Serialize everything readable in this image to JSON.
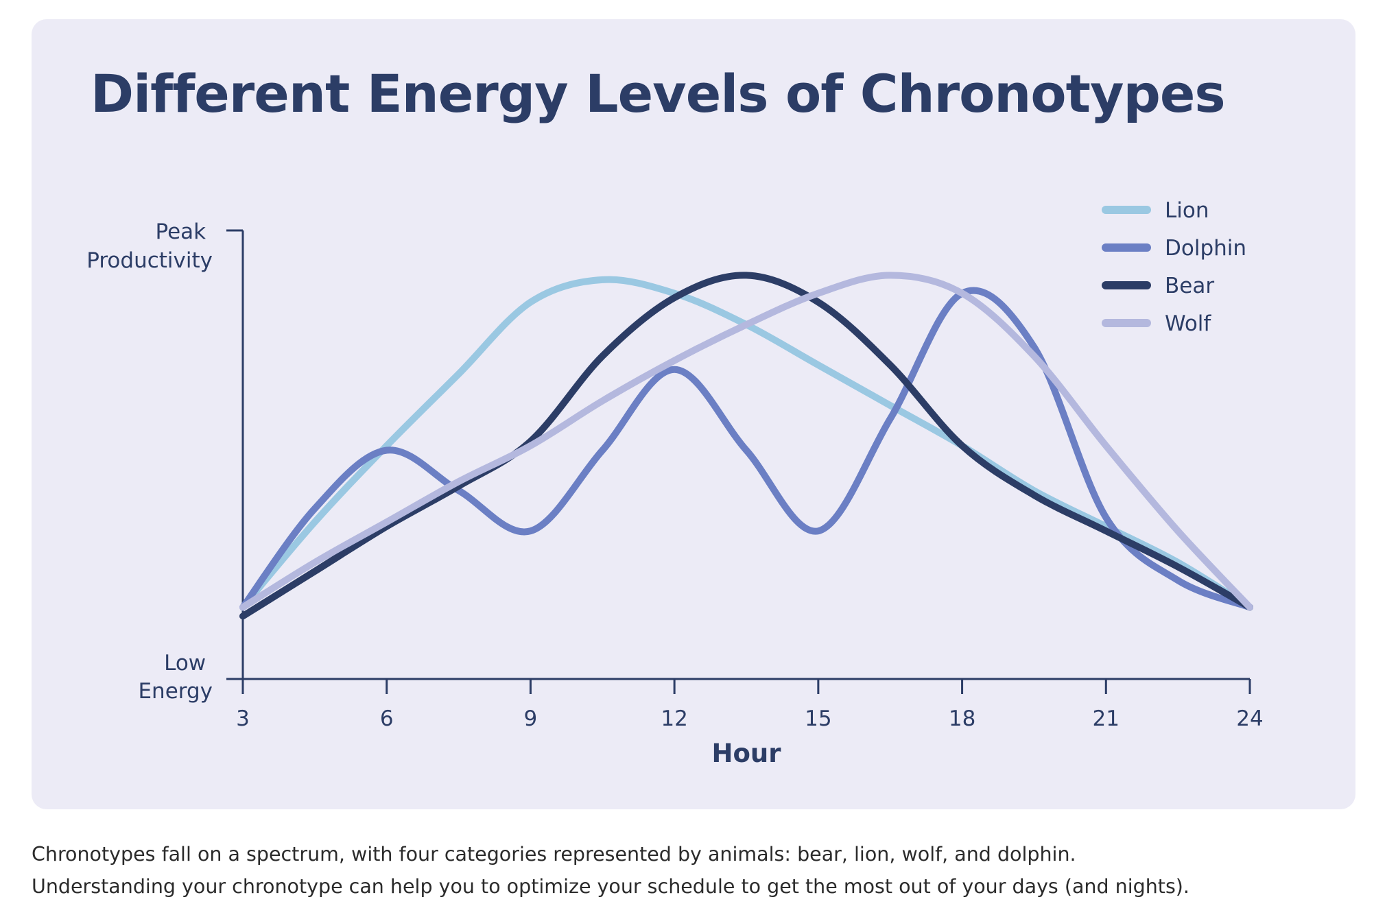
{
  "chart_data": {
    "type": "line",
    "title": "Different Energy Levels of Chronotypes",
    "xlabel": "Hour",
    "ylabel_top": [
      "Peak",
      "Productivity"
    ],
    "ylabel_bottom": [
      "Low",
      "Energy"
    ],
    "x_ticks": [
      3,
      6,
      9,
      12,
      15,
      18,
      21,
      24
    ],
    "xlim": [
      3,
      24
    ],
    "ylim": [
      0,
      100
    ],
    "grid": false,
    "legend_position": "top-right",
    "series": [
      {
        "name": "Lion",
        "color": "#9ac8e2",
        "points": [
          [
            3,
            16
          ],
          [
            4.5,
            35
          ],
          [
            6,
            52
          ],
          [
            7.5,
            68
          ],
          [
            9,
            84
          ],
          [
            10.5,
            89
          ],
          [
            12,
            86
          ],
          [
            13.5,
            79
          ],
          [
            15,
            70
          ],
          [
            16.5,
            61
          ],
          [
            18,
            52
          ],
          [
            19.5,
            42
          ],
          [
            21,
            34
          ],
          [
            22.5,
            26
          ],
          [
            24,
            16
          ]
        ]
      },
      {
        "name": "Dolphin",
        "color": "#6b7fc4",
        "points": [
          [
            3,
            16
          ],
          [
            4.5,
            38
          ],
          [
            6,
            51
          ],
          [
            7.5,
            42
          ],
          [
            9,
            33
          ],
          [
            10.5,
            51
          ],
          [
            12,
            69
          ],
          [
            13.5,
            51
          ],
          [
            15,
            33
          ],
          [
            16.5,
            58
          ],
          [
            18,
            86
          ],
          [
            19.5,
            74
          ],
          [
            21,
            36
          ],
          [
            22.5,
            22
          ],
          [
            24,
            16
          ]
        ]
      },
      {
        "name": "Bear",
        "color": "#2c3d66",
        "points": [
          [
            3,
            14
          ],
          [
            4.5,
            24
          ],
          [
            6,
            34
          ],
          [
            7.5,
            43
          ],
          [
            9,
            53
          ],
          [
            10.5,
            72
          ],
          [
            12,
            85
          ],
          [
            13.5,
            90
          ],
          [
            15,
            84
          ],
          [
            16.5,
            70
          ],
          [
            18,
            52
          ],
          [
            19.5,
            41
          ],
          [
            21,
            33
          ],
          [
            22.5,
            25
          ],
          [
            24,
            16
          ]
        ]
      },
      {
        "name": "Wolf",
        "color": "#b4b8de",
        "points": [
          [
            3,
            16
          ],
          [
            4.5,
            26
          ],
          [
            6,
            35
          ],
          [
            7.5,
            44
          ],
          [
            9,
            52
          ],
          [
            10.5,
            62
          ],
          [
            12,
            71
          ],
          [
            13.5,
            79
          ],
          [
            15,
            86
          ],
          [
            16.5,
            90
          ],
          [
            18,
            86
          ],
          [
            19.5,
            72
          ],
          [
            21,
            52
          ],
          [
            22.5,
            33
          ],
          [
            24,
            16
          ]
        ]
      }
    ]
  },
  "caption": {
    "line1": "Chronotypes fall on a spectrum, with four categories represented by animals: bear, lion, wolf, and dolphin.",
    "line2": "Understanding your chronotype can help you to optimize your schedule to get the most out of your days (and nights)."
  }
}
